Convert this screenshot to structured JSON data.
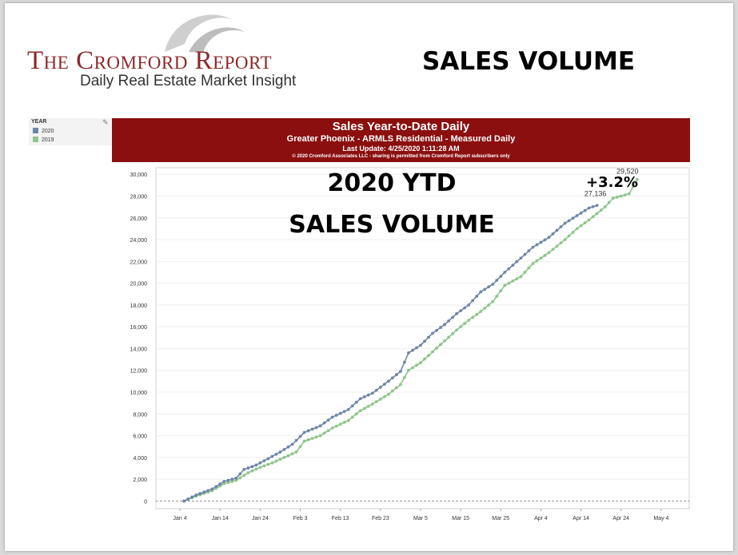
{
  "slide": {
    "heading": "SALES VOLUME",
    "logo": {
      "title": "The Cromford Report",
      "tagline": "Daily Real Estate Market Insight"
    }
  },
  "legend": {
    "title": "YEAR",
    "items": [
      {
        "label": "2020",
        "color": "#6f86a8"
      },
      {
        "label": "2019",
        "color": "#8fc48a"
      }
    ]
  },
  "banner": {
    "title": "Sales Year-to-Date Daily",
    "subtitle": "Greater Phoenix - ARMLS Residential - Measured Daily",
    "update": "Last Update: 4/25/2020 1:11:28 AM",
    "copyright": "© 2020 Cromford Associates LLC - sharing is permitted from Cromford Report subscribers only",
    "color": "#8b0f0f"
  },
  "overlay": {
    "ytd_text": "2020 YTD",
    "sales_text": "SALES VOLUME",
    "pct_change": "+3.2%"
  },
  "chart_data": {
    "type": "line",
    "title": "Sales Year-to-Date Daily",
    "xlabel": "",
    "ylabel": "",
    "x_tick_labels": [
      "Jan 4",
      "Jan 14",
      "Jan 24",
      "Feb 3",
      "Feb 13",
      "Feb 23",
      "Mar 5",
      "Mar 15",
      "Mar 25",
      "Apr 4",
      "Apr 14",
      "Apr 24",
      "May 4"
    ],
    "x_range_days": [
      -6,
      127
    ],
    "y_ticks": [
      0,
      2000,
      4000,
      6000,
      8000,
      10000,
      12000,
      14000,
      16000,
      18000,
      20000,
      22000,
      24000,
      26000,
      28000,
      30000
    ],
    "y_tick_labels": [
      "0",
      "2,000",
      "4,000",
      "6,000",
      "8,000",
      "10,000",
      "12,000",
      "14,000",
      "16,000",
      "18,000",
      "20,000",
      "22,000",
      "24,000",
      "26,000",
      "28,000",
      "30,000"
    ],
    "ylim": [
      -700,
      30600
    ],
    "grid": "horizontal",
    "legend_position": "top-left",
    "series": [
      {
        "name": "2020",
        "color": "#6f86a8",
        "end_label": "27,136",
        "points": [
          [
            1,
            0
          ],
          [
            4,
            550
          ],
          [
            8,
            1100
          ],
          [
            11,
            1800
          ],
          [
            14,
            2100
          ],
          [
            16,
            2900
          ],
          [
            19,
            3300
          ],
          [
            22,
            3900
          ],
          [
            25,
            4500
          ],
          [
            28,
            5200
          ],
          [
            31,
            6300
          ],
          [
            35,
            6900
          ],
          [
            38,
            7700
          ],
          [
            42,
            8400
          ],
          [
            45,
            9400
          ],
          [
            48,
            9900
          ],
          [
            52,
            11000
          ],
          [
            55,
            11900
          ],
          [
            57,
            13600
          ],
          [
            60,
            14300
          ],
          [
            63,
            15400
          ],
          [
            66,
            16200
          ],
          [
            69,
            17200
          ],
          [
            72,
            18000
          ],
          [
            75,
            19200
          ],
          [
            78,
            19900
          ],
          [
            81,
            21000
          ],
          [
            85,
            22300
          ],
          [
            88,
            23300
          ],
          [
            92,
            24200
          ],
          [
            96,
            25500
          ],
          [
            99,
            26200
          ],
          [
            102,
            26900
          ],
          [
            104,
            27136
          ]
        ]
      },
      {
        "name": "2019",
        "color": "#8fc48a",
        "end_label": "29,520",
        "points": [
          [
            1,
            0
          ],
          [
            4,
            450
          ],
          [
            8,
            950
          ],
          [
            11,
            1600
          ],
          [
            14,
            1900
          ],
          [
            17,
            2600
          ],
          [
            20,
            3100
          ],
          [
            23,
            3500
          ],
          [
            26,
            4000
          ],
          [
            29,
            4500
          ],
          [
            31,
            5500
          ],
          [
            35,
            6000
          ],
          [
            38,
            6700
          ],
          [
            42,
            7400
          ],
          [
            45,
            8300
          ],
          [
            48,
            8900
          ],
          [
            52,
            9800
          ],
          [
            55,
            10700
          ],
          [
            57,
            12000
          ],
          [
            60,
            12700
          ],
          [
            63,
            13700
          ],
          [
            66,
            14700
          ],
          [
            69,
            15700
          ],
          [
            72,
            16600
          ],
          [
            75,
            17400
          ],
          [
            78,
            18300
          ],
          [
            81,
            19800
          ],
          [
            85,
            20600
          ],
          [
            88,
            21800
          ],
          [
            92,
            22800
          ],
          [
            96,
            24000
          ],
          [
            99,
            25000
          ],
          [
            102,
            25800
          ],
          [
            106,
            27000
          ],
          [
            108,
            27800
          ],
          [
            112,
            28200
          ],
          [
            114,
            29520
          ]
        ]
      }
    ]
  }
}
